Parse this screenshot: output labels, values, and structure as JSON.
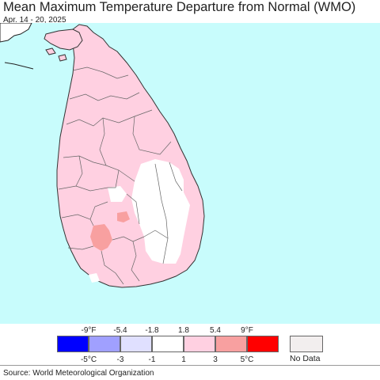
{
  "header": {
    "title": "Mean Maximum Temperature Departure from Normal (WMO)",
    "subtitle": "Apr. 14 - 20, 2025"
  },
  "map": {
    "ocean_color": "#c8fcfc",
    "land_default_color": "#ffd0e1",
    "near_normal_color": "#ffffff",
    "warm_color": "#f8a0a0",
    "boundary_color": "#555555"
  },
  "legend": {
    "fahrenheit_labels": [
      "-9°F",
      "-5.4",
      "-1.8",
      "1.8",
      "5.4",
      "9°F"
    ],
    "celsius_labels": [
      "-5°C",
      "-3",
      "-1",
      "1",
      "3",
      "5°C"
    ],
    "colors": [
      "#0000ff",
      "#a0a0ff",
      "#e0e0ff",
      "#ffffff",
      "#ffd0e1",
      "#f8a0a0",
      "#ff0000"
    ],
    "no_data_label": "No Data",
    "no_data_color": "#f2eeee"
  },
  "footer": {
    "source": "Source: World Meteorological Organization"
  }
}
